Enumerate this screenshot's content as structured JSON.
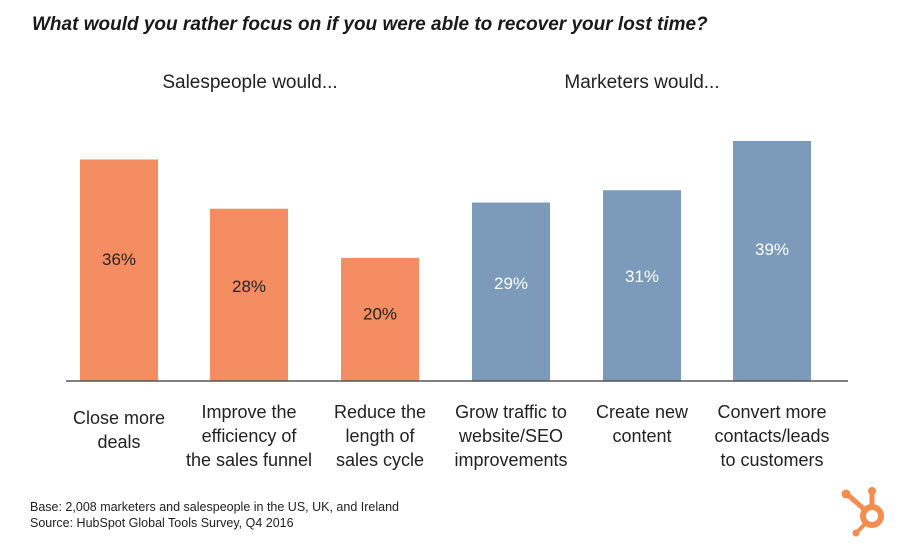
{
  "title": "What would you rather focus on if you were able to recover your lost time?",
  "groups": [
    {
      "label": "Salespeople would..."
    },
    {
      "label": "Marketers would..."
    }
  ],
  "chart_data": {
    "type": "bar",
    "categories": [
      [
        "Close more",
        "deals"
      ],
      [
        "Improve the",
        "efficiency of",
        "the sales funnel"
      ],
      [
        "Reduce the",
        "length of",
        "sales cycle"
      ],
      [
        "Grow traffic to",
        "website/SEO",
        "improvements"
      ],
      [
        "Create new",
        "content"
      ],
      [
        "Convert more",
        "contacts/leads",
        "to customers"
      ]
    ],
    "values": [
      36,
      28,
      20,
      29,
      31,
      39
    ],
    "value_labels": [
      "36%",
      "28%",
      "20%",
      "29%",
      "31%",
      "39%"
    ],
    "group_index": [
      0,
      0,
      0,
      1,
      1,
      1
    ],
    "colors": [
      "#f58d62",
      "#7c9bba"
    ],
    "label_colors": [
      "#222222",
      "#ffffff"
    ],
    "ylim": [
      0,
      39
    ]
  },
  "footer": {
    "base": "Base: 2,008 marketers and salespeople in the US, UK, and Ireland",
    "source": "Source: HubSpot Global Tools Survey, Q4 2016"
  },
  "logo_icon": "hubspot-sprocket-icon",
  "logo_color": "#f58d4f"
}
